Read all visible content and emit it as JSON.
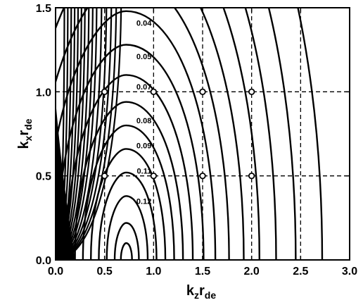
{
  "chart_data": {
    "type": "contour",
    "title": "",
    "xlabel": {
      "base": "k",
      "sub1": "z",
      "mid": "r",
      "sub2": "de"
    },
    "ylabel": {
      "base": "k",
      "sub1": "x",
      "mid": "r",
      "sub2": "de"
    },
    "xlim": [
      0,
      3.0
    ],
    "ylim": [
      0,
      1.5
    ],
    "x_ticks": [
      0.0,
      0.5,
      1.0,
      1.5,
      2.0,
      2.5,
      3.0
    ],
    "x_tick_labels": [
      "0.0",
      "0.5",
      "1.0",
      "1.5",
      "2.0",
      "2.5",
      "3.0"
    ],
    "y_ticks": [
      0.0,
      0.5,
      1.0,
      1.5
    ],
    "y_tick_labels": [
      "0.0",
      "0.5",
      "1.0",
      "1.5"
    ],
    "grid": "dashed at x = 0.5, 1.0, 1.5, 2.0, 2.5 and y = 0.5, 1.0",
    "contour_labels": [
      {
        "text": "0.04",
        "x": 1.0,
        "y": 1.41
      },
      {
        "text": "0.05",
        "x": 1.0,
        "y": 1.21
      },
      {
        "text": "0.07",
        "x": 1.0,
        "y": 1.03
      },
      {
        "text": "0.08",
        "x": 1.0,
        "y": 0.83
      },
      {
        "text": "0.09",
        "x": 1.0,
        "y": 0.68
      },
      {
        "text": "0.11",
        "x": 1.0,
        "y": 0.53
      },
      {
        "text": "0.12",
        "x": 1.0,
        "y": 0.35
      }
    ],
    "peak": {
      "x": 0.72,
      "y": 0.0
    },
    "contours_right": [
      {
        "x_right": 0.78,
        "y_top": 0.1
      },
      {
        "x_right": 0.85,
        "y_top": 0.22
      },
      {
        "x_right": 0.94,
        "y_top": 0.38
      },
      {
        "x_right": 1.03,
        "y_top": 0.52
      },
      {
        "x_right": 1.12,
        "y_top": 0.66
      },
      {
        "x_right": 1.21,
        "y_top": 0.8
      },
      {
        "x_right": 1.3,
        "y_top": 0.94
      },
      {
        "x_right": 1.4,
        "y_top": 1.1
      },
      {
        "x_right": 1.51,
        "y_top": 1.28
      },
      {
        "x_right": 1.63,
        "y_top": 1.48
      },
      {
        "x_right": 1.77,
        "y_top": 1.68
      },
      {
        "x_right": 1.92,
        "y_top": 1.9
      },
      {
        "x_right": 2.08,
        "y_top": 2.14
      },
      {
        "x_right": 2.25,
        "y_top": 2.4
      },
      {
        "x_right": 2.45,
        "y_top": 2.68
      },
      {
        "x_right": 2.72,
        "y_top": 3.0
      }
    ],
    "contours_left": [
      0.09,
      0.125,
      0.16,
      0.195,
      0.23,
      0.265,
      0.3,
      0.34,
      0.38,
      0.42,
      0.47,
      0.52,
      0.57,
      0.62,
      0.67
    ],
    "markers": [
      {
        "x": 0.5,
        "y": 1.0
      },
      {
        "x": 1.0,
        "y": 1.0
      },
      {
        "x": 1.5,
        "y": 1.0
      },
      {
        "x": 2.0,
        "y": 1.0
      },
      {
        "x": 0.5,
        "y": 0.5
      },
      {
        "x": 1.0,
        "y": 0.5
      },
      {
        "x": 1.5,
        "y": 0.5
      },
      {
        "x": 2.0,
        "y": 0.5
      }
    ]
  }
}
